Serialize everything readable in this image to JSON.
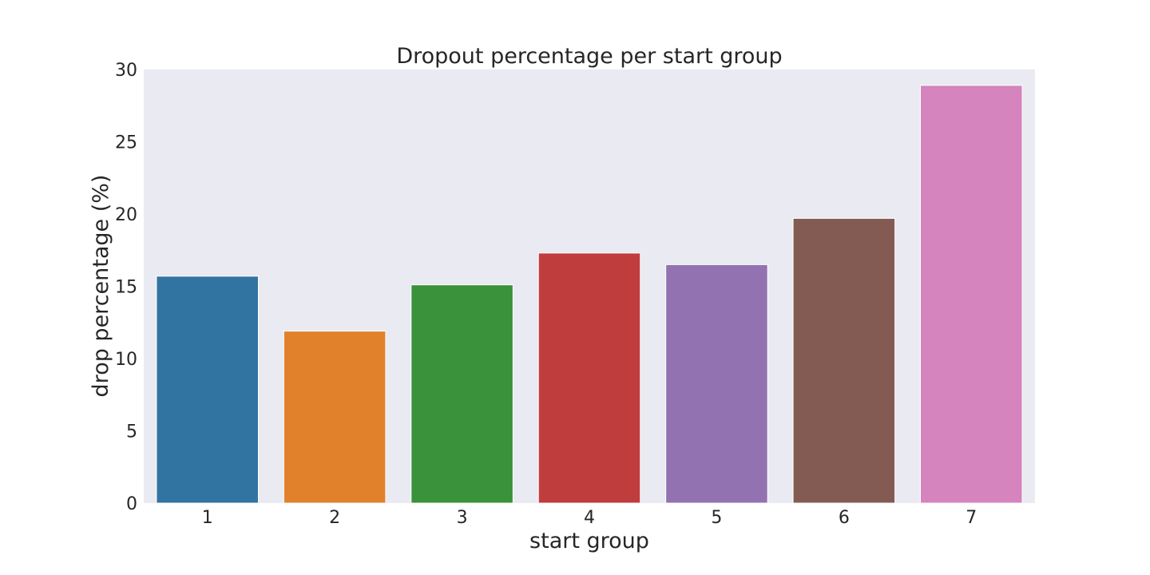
{
  "chart_data": {
    "type": "bar",
    "title": "Dropout percentage per start group",
    "xlabel": "start group",
    "ylabel": "drop percentage (%)",
    "categories": [
      "1",
      "2",
      "3",
      "4",
      "5",
      "6",
      "7"
    ],
    "values": [
      15.7,
      11.9,
      15.1,
      17.3,
      16.5,
      19.7,
      28.9
    ],
    "colors": [
      "#3274a1",
      "#e1812c",
      "#3a923a",
      "#c03d3e",
      "#9372b2",
      "#845b53",
      "#d684bd"
    ],
    "ylim": [
      0,
      30
    ],
    "yticks": [
      0,
      5,
      10,
      15,
      20,
      25,
      30
    ],
    "plot_background": "#eaeaf2",
    "grid": false,
    "legend": false
  }
}
